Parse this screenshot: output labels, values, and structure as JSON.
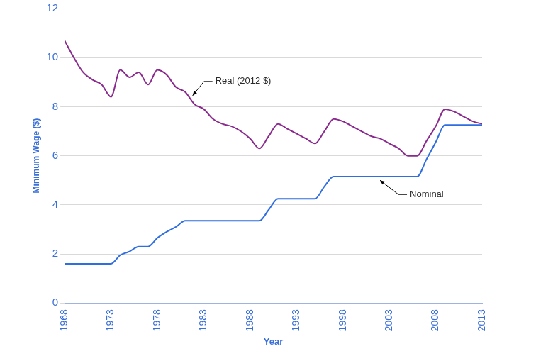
{
  "chart_data": {
    "type": "line",
    "x_label": "Year",
    "y_label": "Minimum Wage ($)",
    "x": [
      1968,
      1969,
      1970,
      1971,
      1972,
      1973,
      1974,
      1975,
      1976,
      1977,
      1978,
      1979,
      1980,
      1981,
      1982,
      1983,
      1984,
      1985,
      1986,
      1987,
      1988,
      1989,
      1990,
      1991,
      1992,
      1993,
      1994,
      1995,
      1996,
      1997,
      1998,
      1999,
      2000,
      2001,
      2002,
      2003,
      2004,
      2005,
      2006,
      2007,
      2008,
      2009,
      2010,
      2011,
      2012,
      2013
    ],
    "series": [
      {
        "name": "Real (2012 $)",
        "color": "#8a2a8e",
        "values": [
          10.7,
          10.0,
          9.4,
          9.1,
          8.9,
          8.4,
          9.5,
          9.2,
          9.4,
          8.9,
          9.5,
          9.3,
          8.8,
          8.6,
          8.1,
          7.9,
          7.5,
          7.3,
          7.2,
          7.0,
          6.7,
          6.3,
          6.8,
          7.3,
          7.1,
          6.9,
          6.7,
          6.5,
          7.0,
          7.5,
          7.4,
          7.2,
          7.0,
          6.8,
          6.7,
          6.5,
          6.3,
          6.0,
          6.0,
          6.6,
          7.2,
          7.9,
          7.8,
          7.6,
          7.4,
          7.3
        ]
      },
      {
        "name": "Nominal",
        "color": "#2f6ee0",
        "values": [
          1.6,
          1.6,
          1.6,
          1.6,
          1.6,
          1.6,
          1.95,
          2.1,
          2.3,
          2.3,
          2.65,
          2.9,
          3.1,
          3.35,
          3.35,
          3.35,
          3.35,
          3.35,
          3.35,
          3.35,
          3.35,
          3.35,
          3.8,
          4.25,
          4.25,
          4.25,
          4.25,
          4.25,
          4.75,
          5.15,
          5.15,
          5.15,
          5.15,
          5.15,
          5.15,
          5.15,
          5.15,
          5.15,
          5.15,
          5.85,
          6.55,
          7.25,
          7.25,
          7.25,
          7.25,
          7.25
        ]
      }
    ],
    "xlim": [
      1968,
      2013
    ],
    "xticks": [
      1968,
      1973,
      1978,
      1983,
      1988,
      1993,
      1998,
      2003,
      2008,
      2013
    ],
    "ylim": [
      0,
      12
    ],
    "yticks": [
      0,
      2,
      4,
      6,
      8,
      10,
      12
    ],
    "grid": true,
    "annotations": [
      {
        "text": "Real (2012 $)",
        "x": 1981.8,
        "y": 8.45
      },
      {
        "text": "Nominal",
        "x": 2002,
        "y": 5.0
      }
    ]
  }
}
